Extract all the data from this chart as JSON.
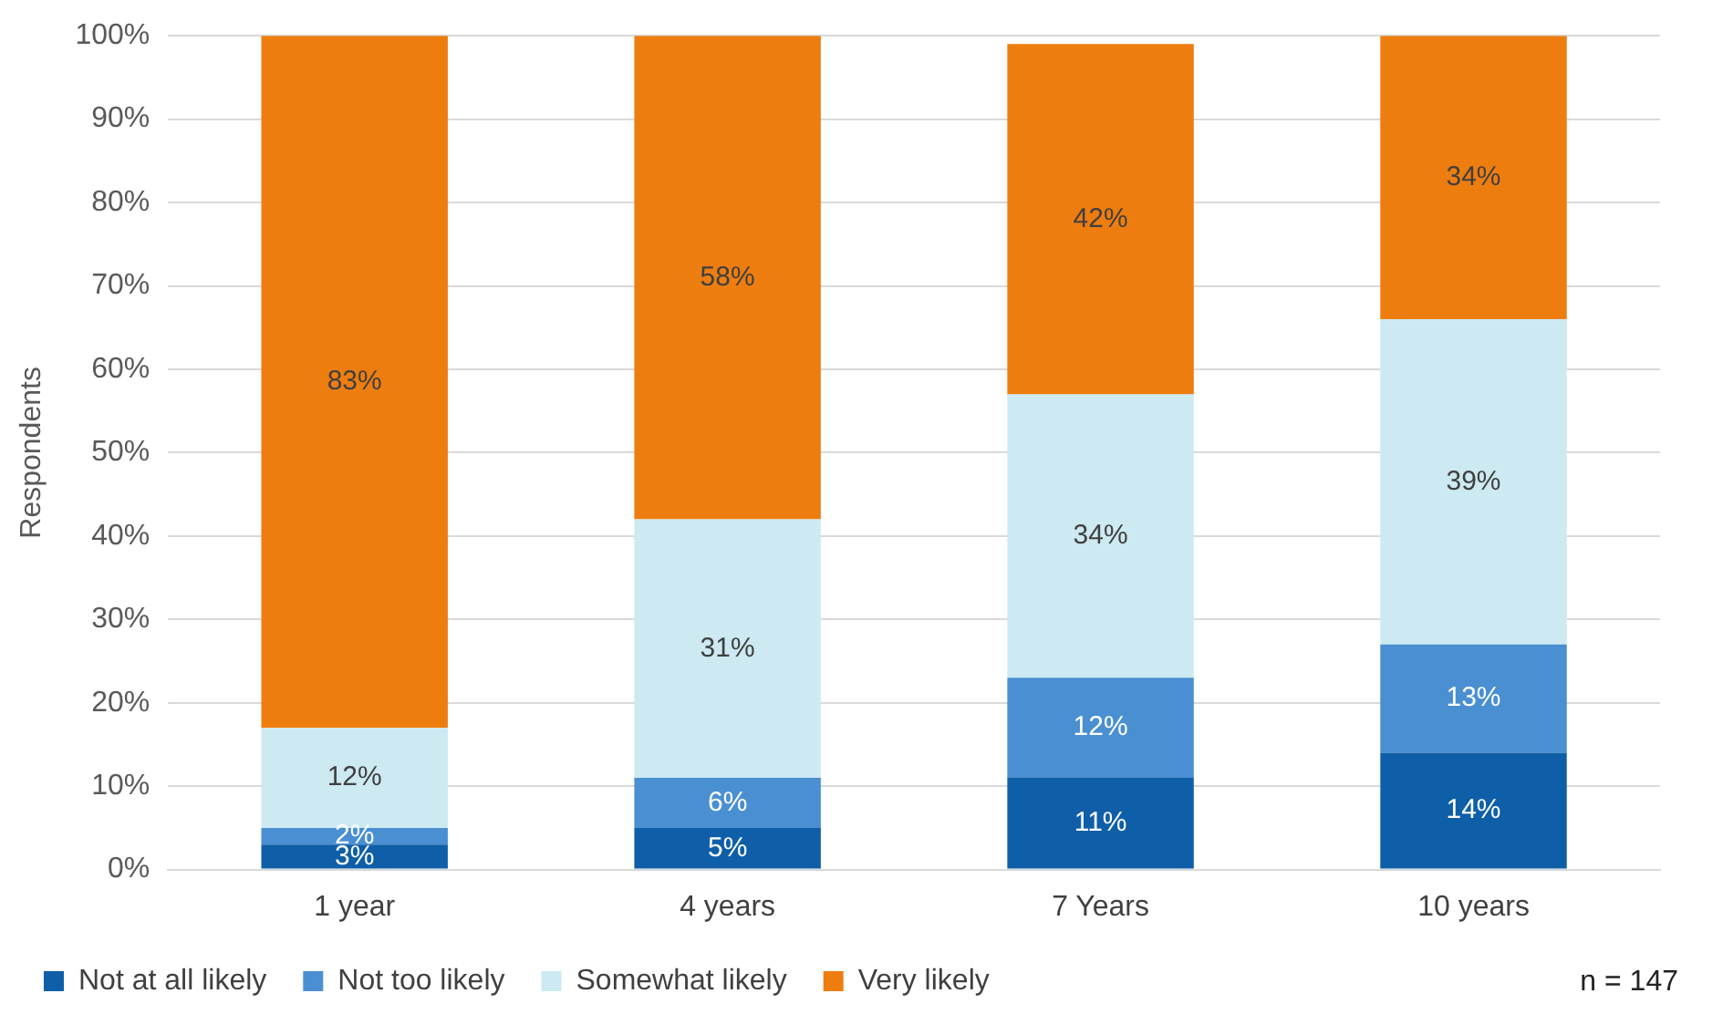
{
  "chart_data": {
    "type": "bar",
    "stacked": true,
    "ylabel": "Respondents",
    "categories": [
      "1 year",
      "4 years",
      "7 Years",
      "10 years"
    ],
    "ylim": [
      0,
      100
    ],
    "yticks": [
      {
        "value": 0,
        "label": "0%"
      },
      {
        "value": 10,
        "label": "10%"
      },
      {
        "value": 20,
        "label": "20%"
      },
      {
        "value": 30,
        "label": "30%"
      },
      {
        "value": 40,
        "label": "40%"
      },
      {
        "value": 50,
        "label": "50%"
      },
      {
        "value": 60,
        "label": "60%"
      },
      {
        "value": 70,
        "label": "70%"
      },
      {
        "value": 80,
        "label": "80%"
      },
      {
        "value": 90,
        "label": "90%"
      },
      {
        "value": 100,
        "label": "100%"
      }
    ],
    "grid": "y",
    "legend": "bottom",
    "series": [
      {
        "name": "Not at all likely",
        "color": "#0f5fa8",
        "values": [
          3,
          5,
          11,
          14
        ],
        "value_labels": [
          "3%",
          "5%",
          "11%",
          "14%"
        ]
      },
      {
        "name": "Not too likely",
        "color": "#4a8fd1",
        "values": [
          2,
          6,
          12,
          13
        ],
        "value_labels": [
          "2%",
          "6%",
          "12%",
          "13%"
        ]
      },
      {
        "name": "Somewhat likely",
        "color": "#cde9f1",
        "values": [
          12,
          31,
          34,
          39
        ],
        "value_labels": [
          "12%",
          "31%",
          "34%",
          "39%"
        ]
      },
      {
        "name": "Very likely",
        "color": "#ee7d10",
        "values": [
          83,
          58,
          42,
          34
        ],
        "value_labels": [
          "83%",
          "58%",
          "42%",
          "34%"
        ]
      }
    ],
    "annotations": [
      "n = 147"
    ]
  }
}
